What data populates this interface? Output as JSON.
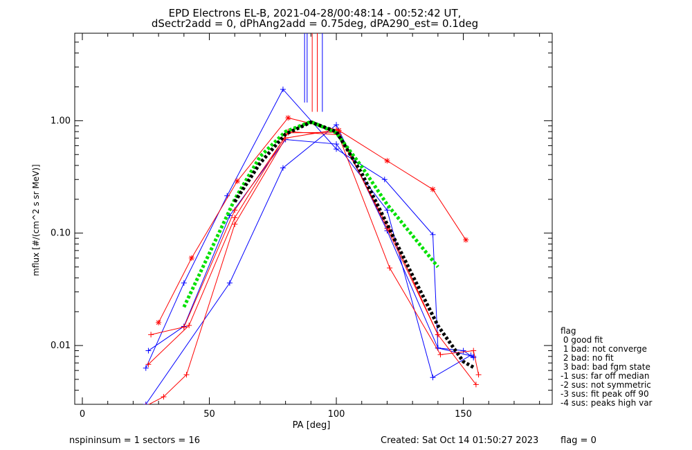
{
  "chart_data": {
    "type": "line",
    "title_lines": [
      "EPD Electrons EL-B, 2021-04-28/00:48:14 - 00:52:42 UT,",
      "dSectr2add = 0, dPhAng2add = 0.75deg, dPA290_est=   0.1deg"
    ],
    "xlabel": "PA [deg]",
    "ylabel": "mflux [#/(cm^2 s sr MeV)]",
    "xlim": [
      -3,
      185
    ],
    "ylim": [
      0.003,
      6
    ],
    "yscale": "log",
    "x_ticks": [
      0,
      50,
      100,
      150
    ],
    "x_tick_labels": [
      "0",
      "50",
      "100",
      "150"
    ],
    "y_ticks": [
      0.01,
      0.1,
      1.0
    ],
    "y_tick_labels": [
      "0.01",
      "0.10",
      "1.00"
    ],
    "grid": false,
    "series": [
      {
        "color": "#0000ff",
        "marker": "plus",
        "style": "solid",
        "points": [
          [
            25,
            0.003
          ],
          [
            58,
            0.036
          ],
          [
            79,
            0.38
          ],
          [
            100,
            0.92
          ],
          [
            120,
            0.105
          ],
          [
            140,
            0.0095
          ],
          [
            150,
            0.009
          ],
          [
            154,
            0.0078
          ]
        ]
      },
      {
        "color": "#0000ff",
        "marker": "plus",
        "style": "solid",
        "points": [
          [
            25,
            0.0063
          ],
          [
            40,
            0.036
          ],
          [
            57,
            0.215
          ],
          [
            79,
            1.9
          ],
          [
            100,
            0.56
          ],
          [
            119,
            0.3
          ],
          [
            138,
            0.097
          ],
          [
            140,
            0.0095
          ],
          [
            154,
            0.008
          ]
        ]
      },
      {
        "color": "#0000ff",
        "marker": "plus",
        "style": "solid",
        "points": [
          [
            26,
            0.009
          ],
          [
            40,
            0.0148
          ],
          [
            58,
            0.143
          ],
          [
            80,
            0.68
          ],
          [
            100,
            0.62
          ],
          [
            120,
            0.16
          ],
          [
            138,
            0.0052
          ],
          [
            153,
            0.0082
          ]
        ]
      },
      {
        "color": "#ff0000",
        "marker": "plus",
        "style": "solid",
        "points": [
          [
            25,
            0.0029
          ],
          [
            32,
            0.0035
          ],
          [
            41,
            0.0055
          ],
          [
            60,
            0.12
          ],
          [
            80,
            0.7
          ],
          [
            100,
            0.83
          ],
          [
            121,
            0.049
          ],
          [
            141,
            0.0083
          ],
          [
            154,
            0.009
          ],
          [
            156,
            0.0055
          ]
        ]
      },
      {
        "color": "#ff0000",
        "marker": "plus",
        "style": "solid",
        "points": [
          [
            26,
            0.0068
          ],
          [
            42,
            0.0151
          ],
          [
            60,
            0.137
          ],
          [
            81,
            0.8
          ],
          [
            101,
            0.75
          ],
          [
            121,
            0.107
          ],
          [
            140,
            0.0125
          ],
          [
            155,
            0.0045
          ]
        ]
      },
      {
        "color": "#ff0000",
        "marker": "plus",
        "style": "solid",
        "points": [
          [
            27,
            0.0125
          ],
          [
            40,
            0.0146
          ],
          [
            60,
            0.16
          ],
          [
            81,
            0.78
          ],
          [
            101,
            0.79
          ],
          [
            120,
            0.11
          ],
          [
            140,
            0.0125
          ]
        ]
      },
      {
        "color": "#ff0000",
        "marker": "star",
        "style": "solid",
        "points": [
          [
            30,
            0.016
          ],
          [
            43,
            0.06
          ],
          [
            61,
            0.29
          ],
          [
            81,
            1.06
          ],
          [
            101,
            0.82
          ],
          [
            120,
            0.44
          ],
          [
            138,
            0.245
          ],
          [
            151,
            0.087
          ]
        ]
      },
      {
        "color": "#00e000",
        "marker": "none",
        "style": "dashed",
        "points": [
          [
            40,
            0.022
          ],
          [
            50,
            0.066
          ],
          [
            60,
            0.2
          ],
          [
            70,
            0.48
          ],
          [
            80,
            0.8
          ],
          [
            90,
            0.98
          ],
          [
            100,
            0.78
          ],
          [
            110,
            0.39
          ],
          [
            120,
            0.18
          ],
          [
            130,
            0.095
          ],
          [
            140,
            0.05
          ]
        ]
      },
      {
        "color": "#000000",
        "marker": "none",
        "style": "dashed",
        "points": [
          [
            60,
            0.19
          ],
          [
            70,
            0.42
          ],
          [
            80,
            0.76
          ],
          [
            90,
            0.97
          ],
          [
            100,
            0.8
          ],
          [
            110,
            0.34
          ],
          [
            120,
            0.12
          ],
          [
            130,
            0.042
          ],
          [
            140,
            0.015
          ],
          [
            150,
            0.0072
          ],
          [
            154,
            0.0064
          ]
        ]
      }
    ],
    "vlines": [
      {
        "x": 87.5,
        "color": "#0000ff",
        "from": 1.45
      },
      {
        "x": 88.5,
        "color": "#0000ff",
        "from": 1.45
      },
      {
        "x": 90.5,
        "color": "#ff0000",
        "from": 1.2
      },
      {
        "x": 92.5,
        "color": "#ff0000",
        "from": 1.2
      },
      {
        "x": 94.5,
        "color": "#0000ff",
        "from": 1.2
      }
    ],
    "legend": {
      "title": "flag",
      "entries": [
        " 0 good fit",
        " 1 bad: not converge",
        " 2 bad: no fit",
        " 3 bad: bad fgm state",
        "-1 sus: far off median",
        "-2 sus: not symmetric",
        "-3 sus: fit peak off 90",
        "-4 sus: peaks high var"
      ]
    }
  },
  "footer": {
    "left": "nspininsum =  1  sectors = 16",
    "created": "Created: Sat Oct 14 01:50:27 2023",
    "flag": "flag = 0"
  }
}
